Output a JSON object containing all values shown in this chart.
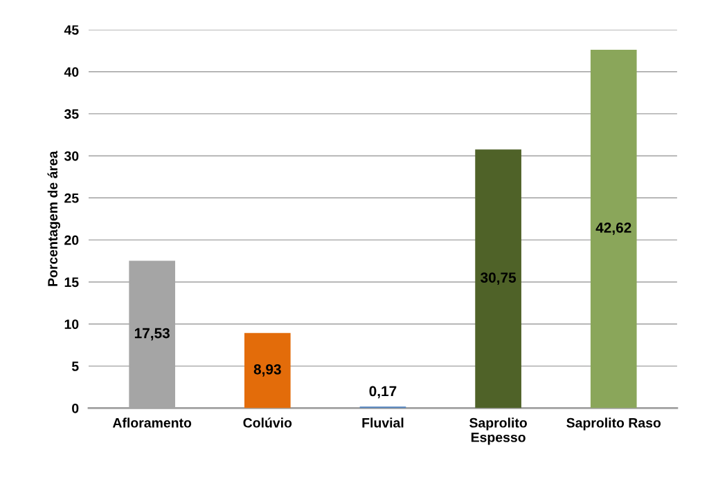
{
  "chart_data": {
    "type": "bar",
    "ylabel": "Porcentagem de área",
    "categories": [
      "Afloramento",
      "Colúvio",
      "Fluvial",
      "Saprolito\nEspesso",
      "Saprolito Raso"
    ],
    "values": [
      17.53,
      8.93,
      0.17,
      30.75,
      42.62
    ],
    "colors": [
      "#a5a5a5",
      "#e36c0a",
      "#4f81bd",
      "#4f6228",
      "#8aa65a"
    ],
    "value_labels": [
      "17,53",
      "8,93",
      "0,17",
      "30,75",
      "42,62"
    ],
    "ylim": [
      0,
      45
    ],
    "yticks": [
      0,
      5,
      10,
      15,
      20,
      25,
      30,
      35,
      40,
      45
    ],
    "grid": "y",
    "legend": false
  }
}
